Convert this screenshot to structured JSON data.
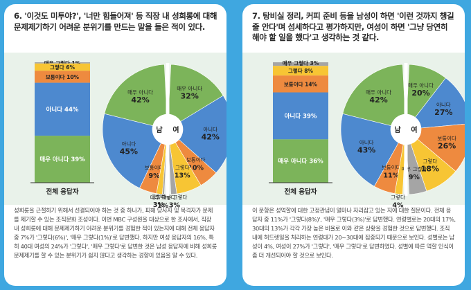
{
  "panels": [
    {
      "title": "6. '이것도 미투야?', '너만 힘들어져' 등 직장 내 성희롱에 대해 문제제기하기 어려운 분위기를 만드는 말을 들은 적이 있다.",
      "description": "성희롱을 근절하기 위해서 선결되어야 하는 것 중 하나가, 피해 당사자 및 목격자가 문제를 제기할 수 있는 조직문화 조성이다. 이번 MBC 구성원을 대상으로 한 조사에서, 직장 내 성희롱에 대해 문제제기하기 어려운 분위기를 경험한 적이 있는지에 대해 전체 응답자 중 7%가 '그렇다(6%)', '매우 그렇다(1%)'로 답변했다. 하지만 여성 응답자의 16%, 특히 40대 여성의 24%가 '그렇다', '매우 그렇다'로 답변한 것은 남성 응답자에 비해 성희롱 문제제기를 할 수 있는 분위기가 쉽지 않다고 생각하는 경향이 있음을 알 수 있다."
    },
    {
      "title": "7. 탕비실 정리, 커피 준비 등을 남성이 하면 '이런 것까지 챙길 줄 안다'며 섬세하다고 평가하지만, 여성이 하면 '그냥 당연히 해야 할 일을 했다'고 생각하는 것 같다.",
      "description": "이 문항은 성역할에 대한 고정관념이 얼마나 자리잡고 있는 지에 대한 질문이다. 전체 응답자 중 11%가 '그렇다(8%)', '매우 그렇다(3%)'로 답변했다. 연령별로는 20대의 17%, 30대의 13%가 각각 가장 높은 비율로 이와 같은 상황을 경험한 것으로 답변했다. 조직 내에 허드렛일을 처리하는 연령대가 20~30대에 집중되기 때문으로 보인다. 성별로는 남성이 4%, 여성이 27%가 '그렇다', '매우 그렇다'로 답변하였다. 성별에 따른 역할 인식이 좀 더 개선되어야 할 것으로 보인다."
    }
  ],
  "chart_data": [
    {
      "type": "pie",
      "subtype": "stacked-bar-and-split-donut",
      "category_order": [
        "매우 아니다",
        "아니다",
        "보통이다",
        "그렇다",
        "매우 그렇다"
      ],
      "total": {
        "label": "전체 응답자",
        "segments": [
          {
            "name": "매우 아니다",
            "value": 39
          },
          {
            "name": "아니다",
            "value": 44
          },
          {
            "name": "보통이다",
            "value": 10
          },
          {
            "name": "그렇다",
            "value": 6
          },
          {
            "name": "매우 그렇다",
            "value": 1
          }
        ]
      },
      "male": {
        "label": "남",
        "segments": [
          {
            "name": "매우 아니다",
            "value": 42
          },
          {
            "name": "아니다",
            "value": 45
          },
          {
            "name": "보통이다",
            "value": 9
          },
          {
            "name": "그렇다",
            "value": 3
          },
          {
            "name": "매우 그렇다",
            "value": 1
          }
        ]
      },
      "female": {
        "label": "여",
        "segments": [
          {
            "name": "매우 아니다",
            "value": 32
          },
          {
            "name": "아니다",
            "value": 42
          },
          {
            "name": "보통이다",
            "value": 10
          },
          {
            "name": "그렇다",
            "value": 13
          },
          {
            "name": "매우 그렇다",
            "value": 3
          }
        ]
      }
    },
    {
      "type": "pie",
      "subtype": "stacked-bar-and-split-donut",
      "category_order": [
        "매우 아니다",
        "아니다",
        "보통이다",
        "그렇다",
        "매우 그렇다"
      ],
      "total": {
        "label": "전체 응답자",
        "segments": [
          {
            "name": "매우 아니다",
            "value": 36
          },
          {
            "name": "아니다",
            "value": 39
          },
          {
            "name": "보통이다",
            "value": 14
          },
          {
            "name": "그렇다",
            "value": 8
          },
          {
            "name": "매우 그렇다",
            "value": 3
          }
        ]
      },
      "male": {
        "label": "남",
        "segments": [
          {
            "name": "매우 아니다",
            "value": 42
          },
          {
            "name": "아니다",
            "value": 43
          },
          {
            "name": "보통이다",
            "value": 11
          },
          {
            "name": "그렇다",
            "value": 4
          },
          {
            "name": "매우 그렇다",
            "value": 0
          }
        ]
      },
      "female": {
        "label": "여",
        "segments": [
          {
            "name": "매우 아니다",
            "value": 20
          },
          {
            "name": "아니다",
            "value": 27
          },
          {
            "name": "보통이다",
            "value": 26
          },
          {
            "name": "그렇다",
            "value": 18
          },
          {
            "name": "매우 그렇다",
            "value": 9
          }
        ]
      }
    }
  ],
  "colors": {
    "매우 아니다": "#7cb45a",
    "아니다": "#4d89cf",
    "보통이다": "#ee8a3f",
    "그렇다": "#f7c534",
    "매우 그렇다": "#a5a5a5"
  }
}
